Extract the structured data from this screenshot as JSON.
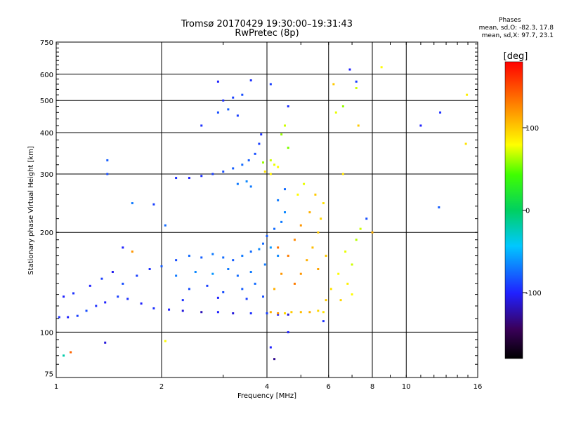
{
  "header": {
    "title_line1": "Tromsø 20170429 19:30:00–19:31:43",
    "title_line2": "RwPretec (8p)",
    "phases_title": "Phases",
    "phases_o": "mean, sd,O: -82.3, 17.8",
    "phases_x": "mean, sd,X:  97.7, 23.1"
  },
  "chart_data": {
    "type": "scatter",
    "title": "Tromsø 20170429 19:30:00–19:31:43",
    "subtitle": "RwPretec (8p)",
    "xlabel": "Frequency [MHz]",
    "ylabel": "Stationary phase Virtual Height [km]",
    "x_scale": "log",
    "y_scale": "log",
    "xlim": [
      1,
      16
    ],
    "ylim": [
      73,
      750
    ],
    "x_ticks": [
      1,
      2,
      4,
      6,
      8,
      10,
      16
    ],
    "y_ticks": [
      75,
      100,
      200,
      300,
      400,
      500,
      600,
      750
    ],
    "major_x": [
      2,
      4,
      6,
      8,
      10
    ],
    "major_y": [
      100,
      200,
      300,
      400,
      500,
      600
    ],
    "grid": true,
    "colorbar": {
      "label": "[deg]",
      "ticks": [
        100,
        0,
        -100
      ],
      "range": [
        -180,
        180
      ],
      "colormap": "rainbow"
    },
    "series": [
      {
        "points": [
          [
            1.02,
            111,
            -95
          ],
          [
            1.08,
            111,
            -100
          ],
          [
            1.15,
            112,
            -90
          ],
          [
            1.22,
            116,
            -85
          ],
          [
            1.3,
            120,
            -95
          ],
          [
            1.38,
            123,
            -100
          ],
          [
            1.5,
            128,
            -90
          ],
          [
            1.6,
            126,
            -95
          ],
          [
            1.75,
            122,
            -100
          ],
          [
            1.9,
            118,
            -95
          ],
          [
            2.1,
            117,
            -100
          ],
          [
            2.3,
            116,
            -110
          ],
          [
            2.6,
            115,
            -120
          ],
          [
            2.9,
            115,
            -100
          ],
          [
            3.2,
            114,
            -110
          ],
          [
            3.6,
            114,
            -95
          ],
          [
            4.0,
            114,
            -90
          ],
          [
            4.3,
            113,
            -100
          ],
          [
            4.6,
            113,
            -110
          ],
          [
            1.05,
            128,
            -100
          ],
          [
            1.12,
            131,
            -95
          ],
          [
            1.25,
            138,
            -100
          ],
          [
            1.35,
            145,
            -90
          ],
          [
            1.45,
            152,
            -105
          ],
          [
            1.55,
            140,
            -85
          ],
          [
            1.7,
            148,
            -90
          ],
          [
            1.85,
            155,
            -95
          ],
          [
            2.0,
            158,
            -80
          ],
          [
            2.2,
            165,
            -85
          ],
          [
            2.4,
            170,
            -75
          ],
          [
            2.6,
            168,
            -80
          ],
          [
            2.8,
            172,
            -70
          ],
          [
            3.0,
            168,
            -75
          ],
          [
            3.2,
            165,
            -80
          ],
          [
            3.4,
            170,
            -70
          ],
          [
            3.6,
            175,
            -75
          ],
          [
            3.8,
            178,
            -65
          ],
          [
            2.2,
            148,
            -70
          ],
          [
            2.5,
            152,
            -65
          ],
          [
            2.8,
            150,
            -60
          ],
          [
            3.1,
            155,
            -70
          ],
          [
            3.3,
            148,
            -75
          ],
          [
            3.6,
            152,
            -70
          ],
          [
            2.4,
            135,
            -85
          ],
          [
            2.7,
            138,
            -90
          ],
          [
            3.0,
            132,
            -85
          ],
          [
            3.4,
            135,
            -80
          ],
          [
            3.7,
            140,
            -75
          ],
          [
            2.3,
            125,
            -95
          ],
          [
            2.9,
            127,
            -100
          ],
          [
            3.5,
            126,
            -90
          ],
          [
            3.9,
            128,
            -85
          ],
          [
            2.2,
            292,
            -95
          ],
          [
            2.4,
            292,
            -100
          ],
          [
            2.6,
            296,
            -95
          ],
          [
            2.8,
            300,
            -90
          ],
          [
            3.0,
            305,
            -85
          ],
          [
            3.2,
            312,
            -80
          ],
          [
            3.4,
            320,
            -75
          ],
          [
            3.55,
            330,
            -80
          ],
          [
            3.7,
            345,
            -85
          ],
          [
            3.8,
            370,
            -90
          ],
          [
            3.85,
            395,
            -95
          ],
          [
            3.3,
            280,
            -70
          ],
          [
            3.5,
            285,
            -65
          ],
          [
            3.6,
            275,
            -70
          ],
          [
            3.9,
            185,
            -75
          ],
          [
            4.0,
            195,
            -80
          ],
          [
            4.2,
            205,
            -75
          ],
          [
            4.4,
            215,
            -70
          ],
          [
            4.5,
            230,
            -65
          ],
          [
            4.3,
            250,
            -70
          ],
          [
            4.5,
            270,
            -75
          ],
          [
            4.1,
            180,
            -60
          ],
          [
            4.3,
            170,
            -65
          ],
          [
            3.95,
            160,
            -70
          ],
          [
            3.9,
            325,
            60
          ],
          [
            4.1,
            330,
            70
          ],
          [
            4.2,
            320,
            75
          ],
          [
            4.3,
            315,
            80
          ],
          [
            3.95,
            305,
            90
          ],
          [
            4.1,
            300,
            85
          ],
          [
            4.4,
            395,
            60
          ],
          [
            4.5,
            420,
            70
          ],
          [
            4.6,
            360,
            55
          ],
          [
            4.1,
            115,
            110
          ],
          [
            4.3,
            114,
            120
          ],
          [
            4.5,
            114,
            95
          ],
          [
            4.7,
            115,
            100
          ],
          [
            5.0,
            115,
            105
          ],
          [
            5.3,
            115,
            110
          ],
          [
            5.6,
            116,
            95
          ],
          [
            5.8,
            115,
            90
          ],
          [
            4.8,
            140,
            130
          ],
          [
            5.0,
            150,
            120
          ],
          [
            5.2,
            165,
            110
          ],
          [
            5.4,
            180,
            105
          ],
          [
            5.6,
            200,
            100
          ],
          [
            5.7,
            220,
            95
          ],
          [
            5.8,
            245,
            90
          ],
          [
            5.5,
            260,
            100
          ],
          [
            5.3,
            230,
            110
          ],
          [
            5.0,
            210,
            120
          ],
          [
            4.8,
            190,
            125
          ],
          [
            4.6,
            170,
            130
          ],
          [
            4.4,
            150,
            120
          ],
          [
            4.2,
            135,
            110
          ],
          [
            4.9,
            260,
            80
          ],
          [
            5.1,
            280,
            75
          ],
          [
            5.6,
            155,
            115
          ],
          [
            5.9,
            170,
            100
          ],
          [
            6.1,
            135,
            90
          ],
          [
            5.9,
            125,
            100
          ],
          [
            6.4,
            150,
            80
          ],
          [
            6.7,
            175,
            75
          ],
          [
            7.0,
            160,
            70
          ],
          [
            7.2,
            190,
            65
          ],
          [
            7.4,
            205,
            70
          ],
          [
            6.8,
            140,
            85
          ],
          [
            7.0,
            130,
            80
          ],
          [
            6.5,
            125,
            95
          ],
          [
            3.0,
            500,
            -95
          ],
          [
            3.2,
            510,
            -90
          ],
          [
            3.4,
            520,
            -85
          ],
          [
            3.1,
            470,
            -80
          ],
          [
            2.9,
            460,
            -85
          ],
          [
            2.6,
            420,
            -95
          ],
          [
            3.3,
            450,
            -90
          ],
          [
            1.4,
            330,
            -80
          ],
          [
            1.4,
            300,
            -85
          ],
          [
            1.65,
            245,
            -70
          ],
          [
            1.9,
            243,
            -90
          ],
          [
            2.05,
            210,
            -75
          ],
          [
            1.55,
            180,
            -100
          ],
          [
            1.65,
            175,
            120
          ],
          [
            4.3,
            180,
            135
          ],
          [
            4.1,
            90,
            -100
          ],
          [
            4.2,
            83,
            -130
          ],
          [
            1.38,
            93,
            -110
          ],
          [
            2.05,
            94,
            80
          ],
          [
            1.1,
            87,
            140
          ],
          [
            1.05,
            85,
            -20
          ],
          [
            2.9,
            570,
            -100
          ],
          [
            3.6,
            575,
            -95
          ],
          [
            4.1,
            560,
            -90
          ],
          [
            4.6,
            480,
            -95
          ],
          [
            6.2,
            560,
            100
          ],
          [
            6.6,
            480,
            60
          ],
          [
            6.3,
            460,
            75
          ],
          [
            6.9,
            620,
            -100
          ],
          [
            7.2,
            570,
            -90
          ],
          [
            8.5,
            630,
            80
          ],
          [
            7.3,
            420,
            100
          ],
          [
            6.6,
            300,
            90
          ],
          [
            8.0,
            200,
            110
          ],
          [
            7.7,
            220,
            -85
          ],
          [
            11.0,
            420,
            -100
          ],
          [
            12.5,
            460,
            -95
          ],
          [
            14.8,
            370,
            90
          ],
          [
            14.9,
            520,
            85
          ],
          [
            12.4,
            238,
            -80
          ],
          [
            7.2,
            545,
            70
          ],
          [
            5.8,
            108,
            -95
          ],
          [
            4.6,
            100,
            -100
          ]
        ]
      }
    ]
  }
}
